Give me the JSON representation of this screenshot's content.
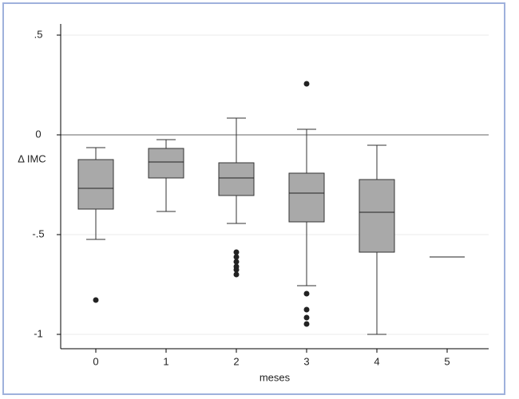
{
  "chart_data": {
    "type": "box",
    "x_label": "meses",
    "y_label": "Δ IMC",
    "categories": [
      "0",
      "1",
      "2",
      "3",
      "4",
      "5"
    ],
    "boxes": [
      {
        "whisker_low": -0.524,
        "q1": -0.372,
        "median": -0.268,
        "q3": -0.124,
        "whisker_high": -0.064,
        "outliers": [
          -0.828
        ]
      },
      {
        "whisker_low": -0.384,
        "q1": -0.216,
        "median": -0.136,
        "q3": -0.068,
        "whisker_high": -0.024,
        "outliers": []
      },
      {
        "whisker_low": -0.444,
        "q1": -0.304,
        "median": -0.216,
        "q3": -0.14,
        "whisker_high": 0.084,
        "outliers": [
          -0.588,
          -0.612,
          -0.636,
          -0.66,
          -0.676,
          -0.7
        ]
      },
      {
        "whisker_low": -0.756,
        "q1": -0.436,
        "median": -0.292,
        "q3": -0.192,
        "whisker_high": 0.028,
        "outliers": [
          0.256,
          -0.796,
          -0.876,
          -0.916,
          -0.948
        ]
      },
      {
        "whisker_low": -1.0,
        "q1": -0.588,
        "median": -0.388,
        "q3": -0.224,
        "whisker_high": -0.052,
        "outliers": []
      },
      {
        "whisker_low": -0.612,
        "q1": -0.612,
        "median": -0.612,
        "q3": -0.612,
        "whisker_high": -0.612,
        "outliers": []
      }
    ],
    "color": "#a9a9a9",
    "ylim": [
      -1.072,
      0.556
    ],
    "yticks": [
      {
        "value": 0.5,
        "label": ".5"
      },
      0,
      {
        "value": -0.5,
        "label": "-.5"
      },
      -1
    ],
    "grid": true,
    "reference_line": 0
  }
}
